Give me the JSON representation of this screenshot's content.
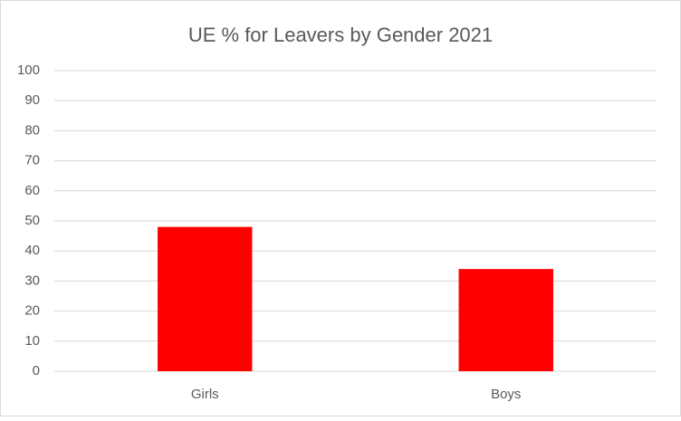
{
  "chart_data": {
    "type": "bar",
    "title": "UE % for Leavers by Gender 2021",
    "categories": [
      "Girls",
      "Boys"
    ],
    "values": [
      48,
      34
    ],
    "color": "#ff0000",
    "ylim": [
      0,
      100
    ],
    "yticks": [
      0,
      10,
      20,
      30,
      40,
      50,
      60,
      70,
      80,
      90,
      100
    ],
    "grid": true
  }
}
